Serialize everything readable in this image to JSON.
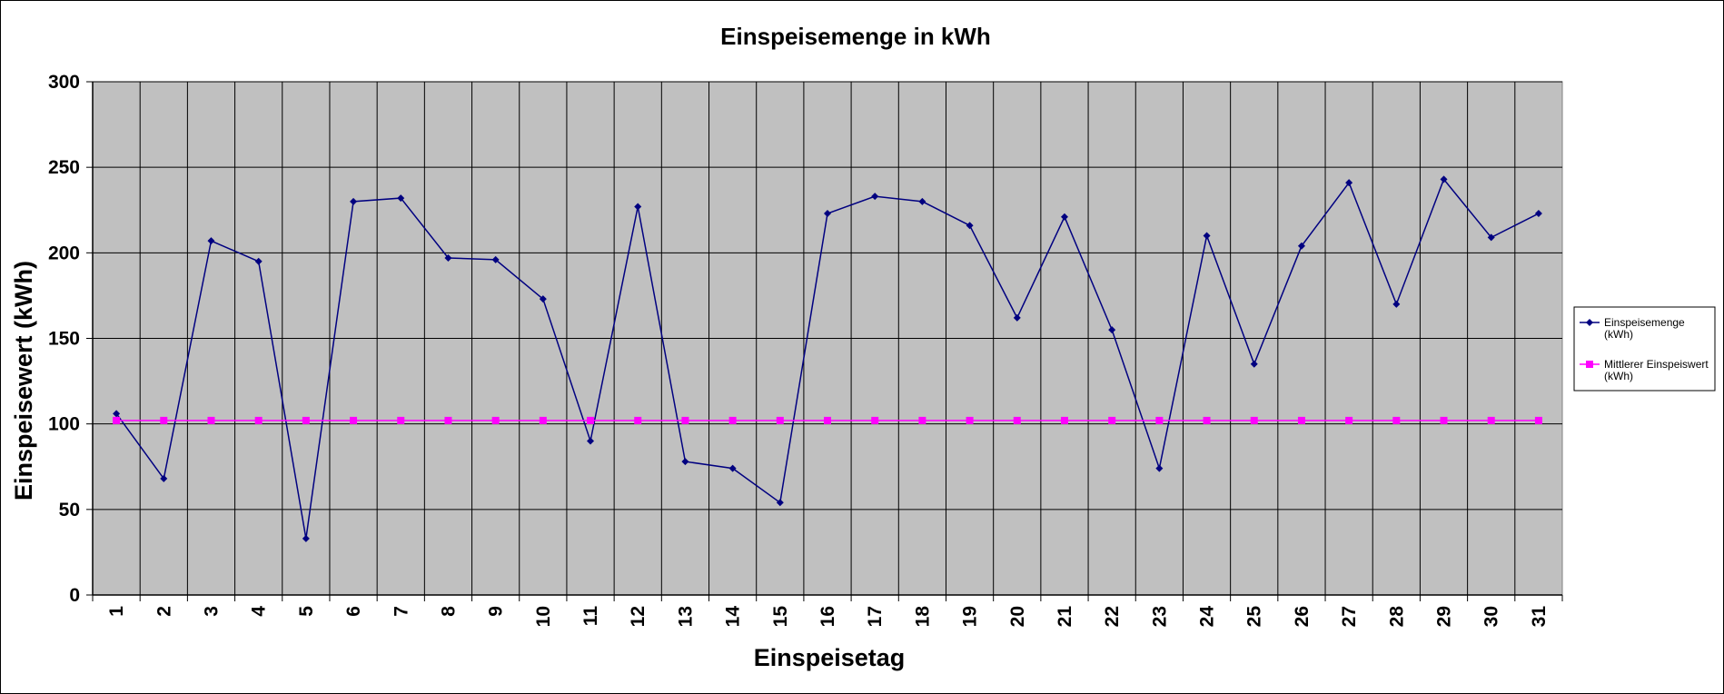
{
  "chart_data": {
    "type": "line",
    "title": "Einspeisemenge in kWh",
    "xlabel": "Einspeisetag",
    "ylabel": "Einspeisewert  (kWh)",
    "ylim": [
      0,
      300
    ],
    "yticks": [
      "0",
      "50",
      "100",
      "150",
      "200",
      "250",
      "300"
    ],
    "categories": [
      "1",
      "2",
      "3",
      "4",
      "5",
      "6",
      "7",
      "8",
      "9",
      "10",
      "11",
      "12",
      "13",
      "14",
      "15",
      "16",
      "17",
      "18",
      "19",
      "20",
      "21",
      "22",
      "23",
      "24",
      "25",
      "26",
      "27",
      "28",
      "29",
      "30",
      "31"
    ],
    "series": [
      {
        "name": "Einspeisemenge (kWh)",
        "name_lines": [
          "Einspeisemenge",
          "(kWh)"
        ],
        "color": "#000080",
        "marker": "diamond",
        "values": [
          106,
          68,
          207,
          195,
          33,
          230,
          232,
          197,
          196,
          173,
          90,
          227,
          78,
          74,
          54,
          223,
          233,
          230,
          216,
          162,
          221,
          155,
          74,
          210,
          135,
          204,
          241,
          170,
          243,
          209,
          223
        ]
      },
      {
        "name": "Mittlerer Einspeiswert (kWh)",
        "name_lines": [
          "Mittlerer Einspeiswert",
          "(kWh)"
        ],
        "color": "#ff00ff",
        "marker": "square",
        "values": [
          102,
          102,
          102,
          102,
          102,
          102,
          102,
          102,
          102,
          102,
          102,
          102,
          102,
          102,
          102,
          102,
          102,
          102,
          102,
          102,
          102,
          102,
          102,
          102,
          102,
          102,
          102,
          102,
          102,
          102,
          102
        ]
      }
    ],
    "grid": true,
    "plot_background": "#c0c0c0",
    "legend_position": "right"
  }
}
